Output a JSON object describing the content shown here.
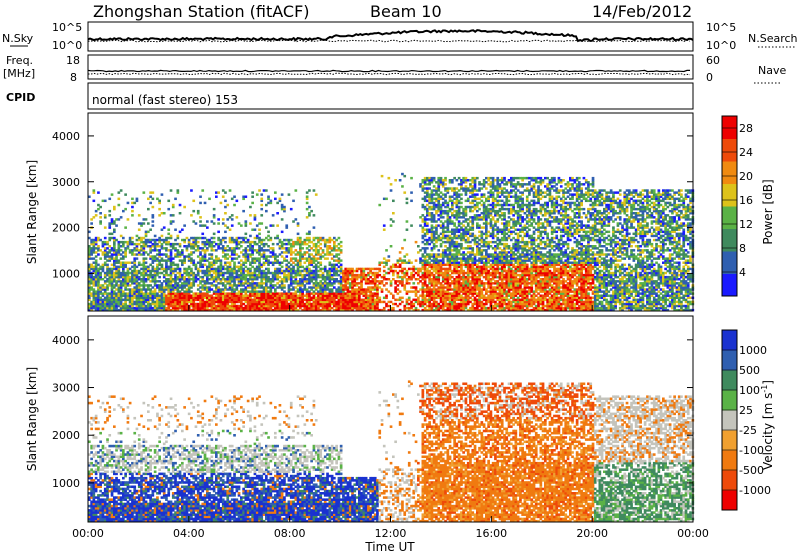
{
  "header": {
    "station": "Zhongshan Station (fitACF)",
    "beam": "Beam 10",
    "date": "14/Feb/2012"
  },
  "aux": {
    "nsky_label": "N.Sky",
    "nsearch_label": "N.Search",
    "freq_label": "Freq.",
    "freq_unit": "[MHz]",
    "nave_label": "Nave",
    "cpid_label": "CPID",
    "cpid_text": "normal (fast stereo) 153",
    "noise_ticks_left": [
      "10^5",
      "10^0"
    ],
    "noise_ticks_right": [
      "10^5",
      "10^0"
    ],
    "freq_ticks": [
      "18",
      "8"
    ],
    "nave_ticks": [
      "60",
      "0"
    ]
  },
  "chart_data": [
    {
      "type": "heatmap",
      "name": "power",
      "ylabel": "Slant Range [km]",
      "xlabel": "",
      "ylim": [
        180,
        4500
      ],
      "xlim": [
        0,
        24
      ],
      "yticks": [
        1000,
        2000,
        3000,
        4000
      ],
      "colorbar": {
        "label": "Power [dB]",
        "ticks": [
          4,
          8,
          12,
          16,
          20,
          24,
          28
        ],
        "range": [
          0,
          30
        ],
        "colors": [
          "#1a1aff",
          "#2f5fb0",
          "#3f8a5e",
          "#5ab246",
          "#ddc21a",
          "#f08a10",
          "#ee4a0a",
          "#ee0000"
        ]
      }
    },
    {
      "type": "heatmap",
      "name": "velocity",
      "ylabel": "Slant Range [km]",
      "xlabel": "Time UT",
      "ylim": [
        180,
        4500
      ],
      "xlim": [
        0,
        24
      ],
      "yticks": [
        1000,
        2000,
        3000,
        4000
      ],
      "xticks": [
        "00:00",
        "04:00",
        "08:00",
        "12:00",
        "16:00",
        "20:00",
        "00:00"
      ],
      "colorbar": {
        "label": "Velocity [m s^-1]",
        "ticks": [
          "1000",
          "500",
          "100",
          "25",
          "-25",
          "-100",
          "-500",
          "-1000"
        ],
        "colors": [
          "#1a32d0",
          "#2f5fb0",
          "#3f8a5e",
          "#5ab246",
          "#c4c4bc",
          "#f0a030",
          "#f07a10",
          "#ee4a0a",
          "#ee0000"
        ]
      }
    }
  ]
}
